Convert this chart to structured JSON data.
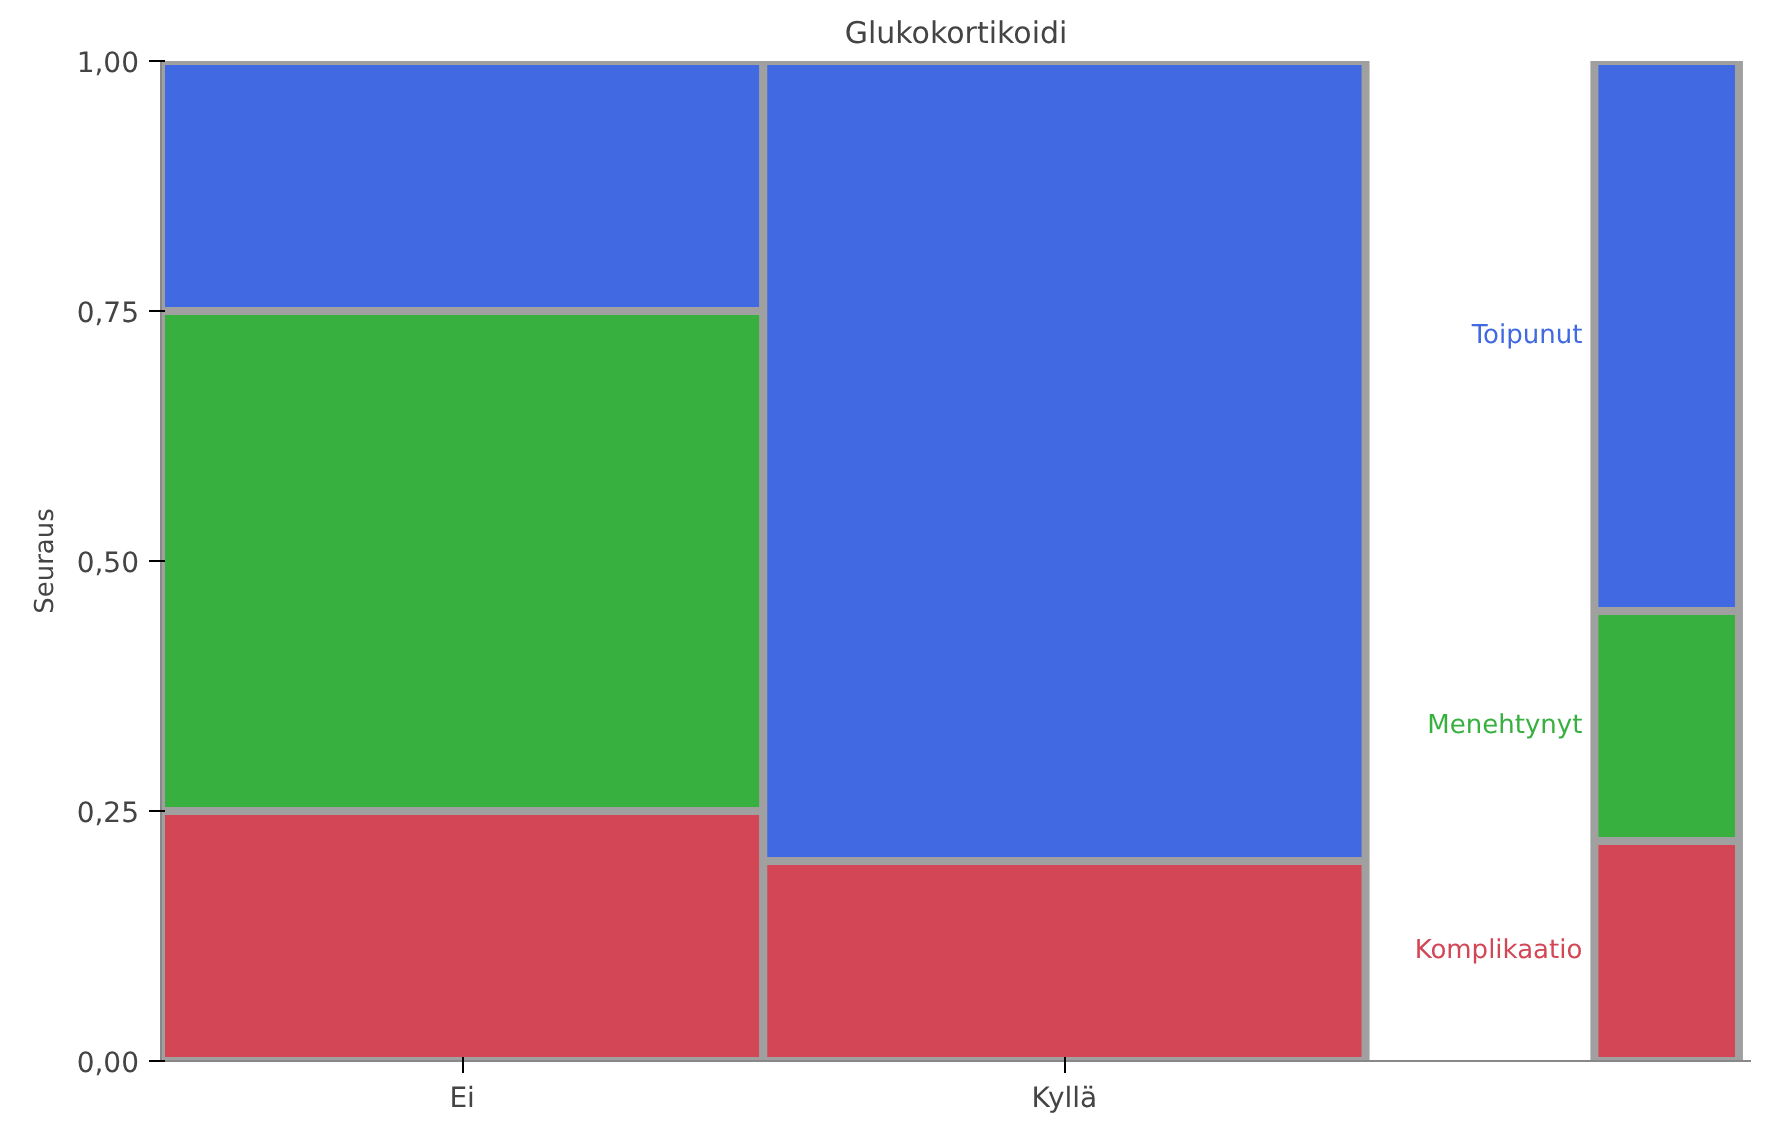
{
  "chart_data": {
    "type": "bar",
    "stacked": true,
    "title": "Glukokortikoidi",
    "ylabel": "Seuraus",
    "categories": [
      "Ei",
      "Kyllä",
      null
    ],
    "series": [
      {
        "name": "Komplikaatio",
        "color": "#d24656",
        "values": [
          0.25,
          0.2,
          0.22
        ]
      },
      {
        "name": "Menehtynyt",
        "color": "#37b03f",
        "values": [
          0.5,
          0,
          0.23
        ]
      },
      {
        "name": "Toipunut",
        "color": "#4169e1",
        "values": [
          0.25,
          0.8,
          0.55
        ]
      }
    ],
    "ylim": [
      0,
      1
    ],
    "yticks": [
      {
        "value": 0,
        "label": "0,00"
      },
      {
        "value": 0.25,
        "label": "0,25"
      },
      {
        "value": 0.5,
        "label": "0,50"
      },
      {
        "value": 0.75,
        "label": "0,75"
      },
      {
        "value": 1,
        "label": "1,00"
      }
    ],
    "grid": false,
    "legend": "right"
  }
}
